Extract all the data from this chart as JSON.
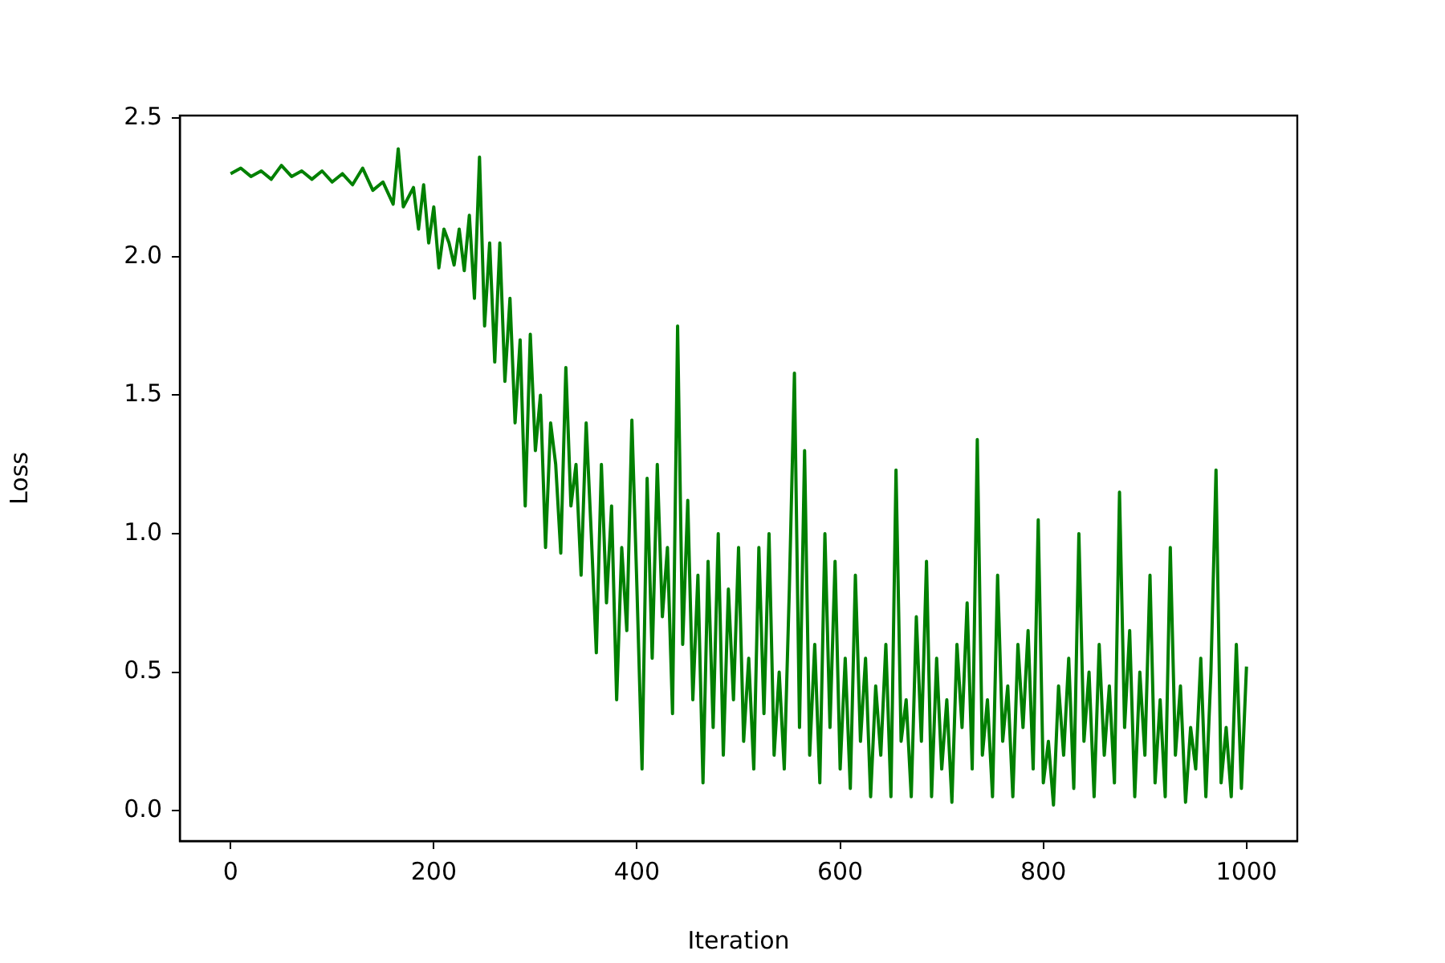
{
  "chart_data": {
    "type": "line",
    "xlabel": "Iteration",
    "ylabel": "Loss",
    "xlim": [
      -50,
      1050
    ],
    "ylim": [
      -0.11,
      2.51
    ],
    "xticks": [
      0,
      200,
      400,
      600,
      800,
      1000
    ],
    "yticks": [
      {
        "value": 0,
        "label": "0.0"
      },
      0.5,
      {
        "value": 1,
        "label": "1.0"
      },
      1.5,
      {
        "value": 2,
        "label": "2.0"
      },
      2.5
    ],
    "grid": false,
    "legend": false,
    "marker": "none",
    "line_style": "solid",
    "series": [
      {
        "color": "#008000",
        "x": [
          0,
          10,
          20,
          30,
          40,
          50,
          60,
          70,
          80,
          90,
          100,
          110,
          120,
          130,
          140,
          150,
          160,
          165,
          170,
          180,
          185,
          190,
          195,
          200,
          205,
          210,
          215,
          220,
          225,
          230,
          235,
          240,
          245,
          250,
          255,
          260,
          265,
          270,
          275,
          280,
          285,
          290,
          295,
          300,
          305,
          310,
          315,
          320,
          325,
          330,
          335,
          340,
          345,
          350,
          355,
          360,
          365,
          370,
          375,
          380,
          385,
          390,
          395,
          400,
          405,
          410,
          415,
          420,
          425,
          430,
          435,
          440,
          445,
          450,
          455,
          460,
          465,
          470,
          475,
          480,
          485,
          490,
          495,
          500,
          505,
          510,
          515,
          520,
          525,
          530,
          535,
          540,
          545,
          550,
          555,
          560,
          565,
          570,
          575,
          580,
          585,
          590,
          595,
          600,
          605,
          610,
          615,
          620,
          625,
          630,
          635,
          640,
          645,
          650,
          655,
          660,
          665,
          670,
          675,
          680,
          685,
          690,
          695,
          700,
          705,
          710,
          715,
          720,
          725,
          730,
          735,
          740,
          745,
          750,
          755,
          760,
          765,
          770,
          775,
          780,
          785,
          790,
          795,
          800,
          805,
          810,
          815,
          820,
          825,
          830,
          835,
          840,
          845,
          850,
          855,
          860,
          865,
          870,
          875,
          880,
          885,
          890,
          895,
          900,
          905,
          910,
          915,
          920,
          925,
          930,
          935,
          940,
          945,
          950,
          955,
          960,
          965,
          970,
          975,
          980,
          985,
          990,
          995,
          1000
        ],
        "values": [
          2.3,
          2.32,
          2.29,
          2.31,
          2.28,
          2.33,
          2.29,
          2.31,
          2.28,
          2.31,
          2.27,
          2.3,
          2.26,
          2.32,
          2.24,
          2.27,
          2.19,
          2.39,
          2.18,
          2.25,
          2.1,
          2.26,
          2.05,
          2.18,
          1.96,
          2.1,
          2.05,
          1.97,
          2.1,
          1.95,
          2.15,
          1.85,
          2.36,
          1.75,
          2.05,
          1.62,
          2.05,
          1.55,
          1.85,
          1.4,
          1.7,
          1.1,
          1.72,
          1.3,
          1.5,
          0.95,
          1.4,
          1.25,
          0.93,
          1.6,
          1.1,
          1.25,
          0.85,
          1.4,
          1.0,
          0.57,
          1.25,
          0.75,
          1.1,
          0.4,
          0.95,
          0.65,
          1.41,
          0.8,
          0.15,
          1.2,
          0.55,
          1.25,
          0.7,
          0.95,
          0.35,
          1.75,
          0.6,
          1.12,
          0.4,
          0.85,
          0.1,
          0.9,
          0.3,
          1.0,
          0.2,
          0.8,
          0.4,
          0.95,
          0.25,
          0.55,
          0.15,
          0.95,
          0.35,
          1.0,
          0.2,
          0.5,
          0.15,
          0.8,
          1.58,
          0.3,
          1.3,
          0.2,
          0.6,
          0.1,
          1.0,
          0.3,
          0.9,
          0.15,
          0.55,
          0.08,
          0.85,
          0.25,
          0.55,
          0.05,
          0.45,
          0.2,
          0.6,
          0.05,
          1.23,
          0.25,
          0.4,
          0.05,
          0.7,
          0.25,
          0.9,
          0.05,
          0.55,
          0.15,
          0.4,
          0.03,
          0.6,
          0.3,
          0.75,
          0.15,
          1.34,
          0.2,
          0.4,
          0.05,
          0.85,
          0.25,
          0.45,
          0.05,
          0.6,
          0.3,
          0.65,
          0.15,
          1.05,
          0.1,
          0.25,
          0.02,
          0.45,
          0.2,
          0.55,
          0.08,
          1.0,
          0.25,
          0.5,
          0.05,
          0.6,
          0.2,
          0.45,
          0.1,
          1.15,
          0.3,
          0.65,
          0.05,
          0.5,
          0.2,
          0.85,
          0.1,
          0.4,
          0.05,
          0.95,
          0.2,
          0.45,
          0.03,
          0.3,
          0.15,
          0.55,
          0.05,
          0.5,
          1.23,
          0.1,
          0.3,
          0.05,
          0.6,
          0.08,
          0.52
        ]
      }
    ]
  }
}
